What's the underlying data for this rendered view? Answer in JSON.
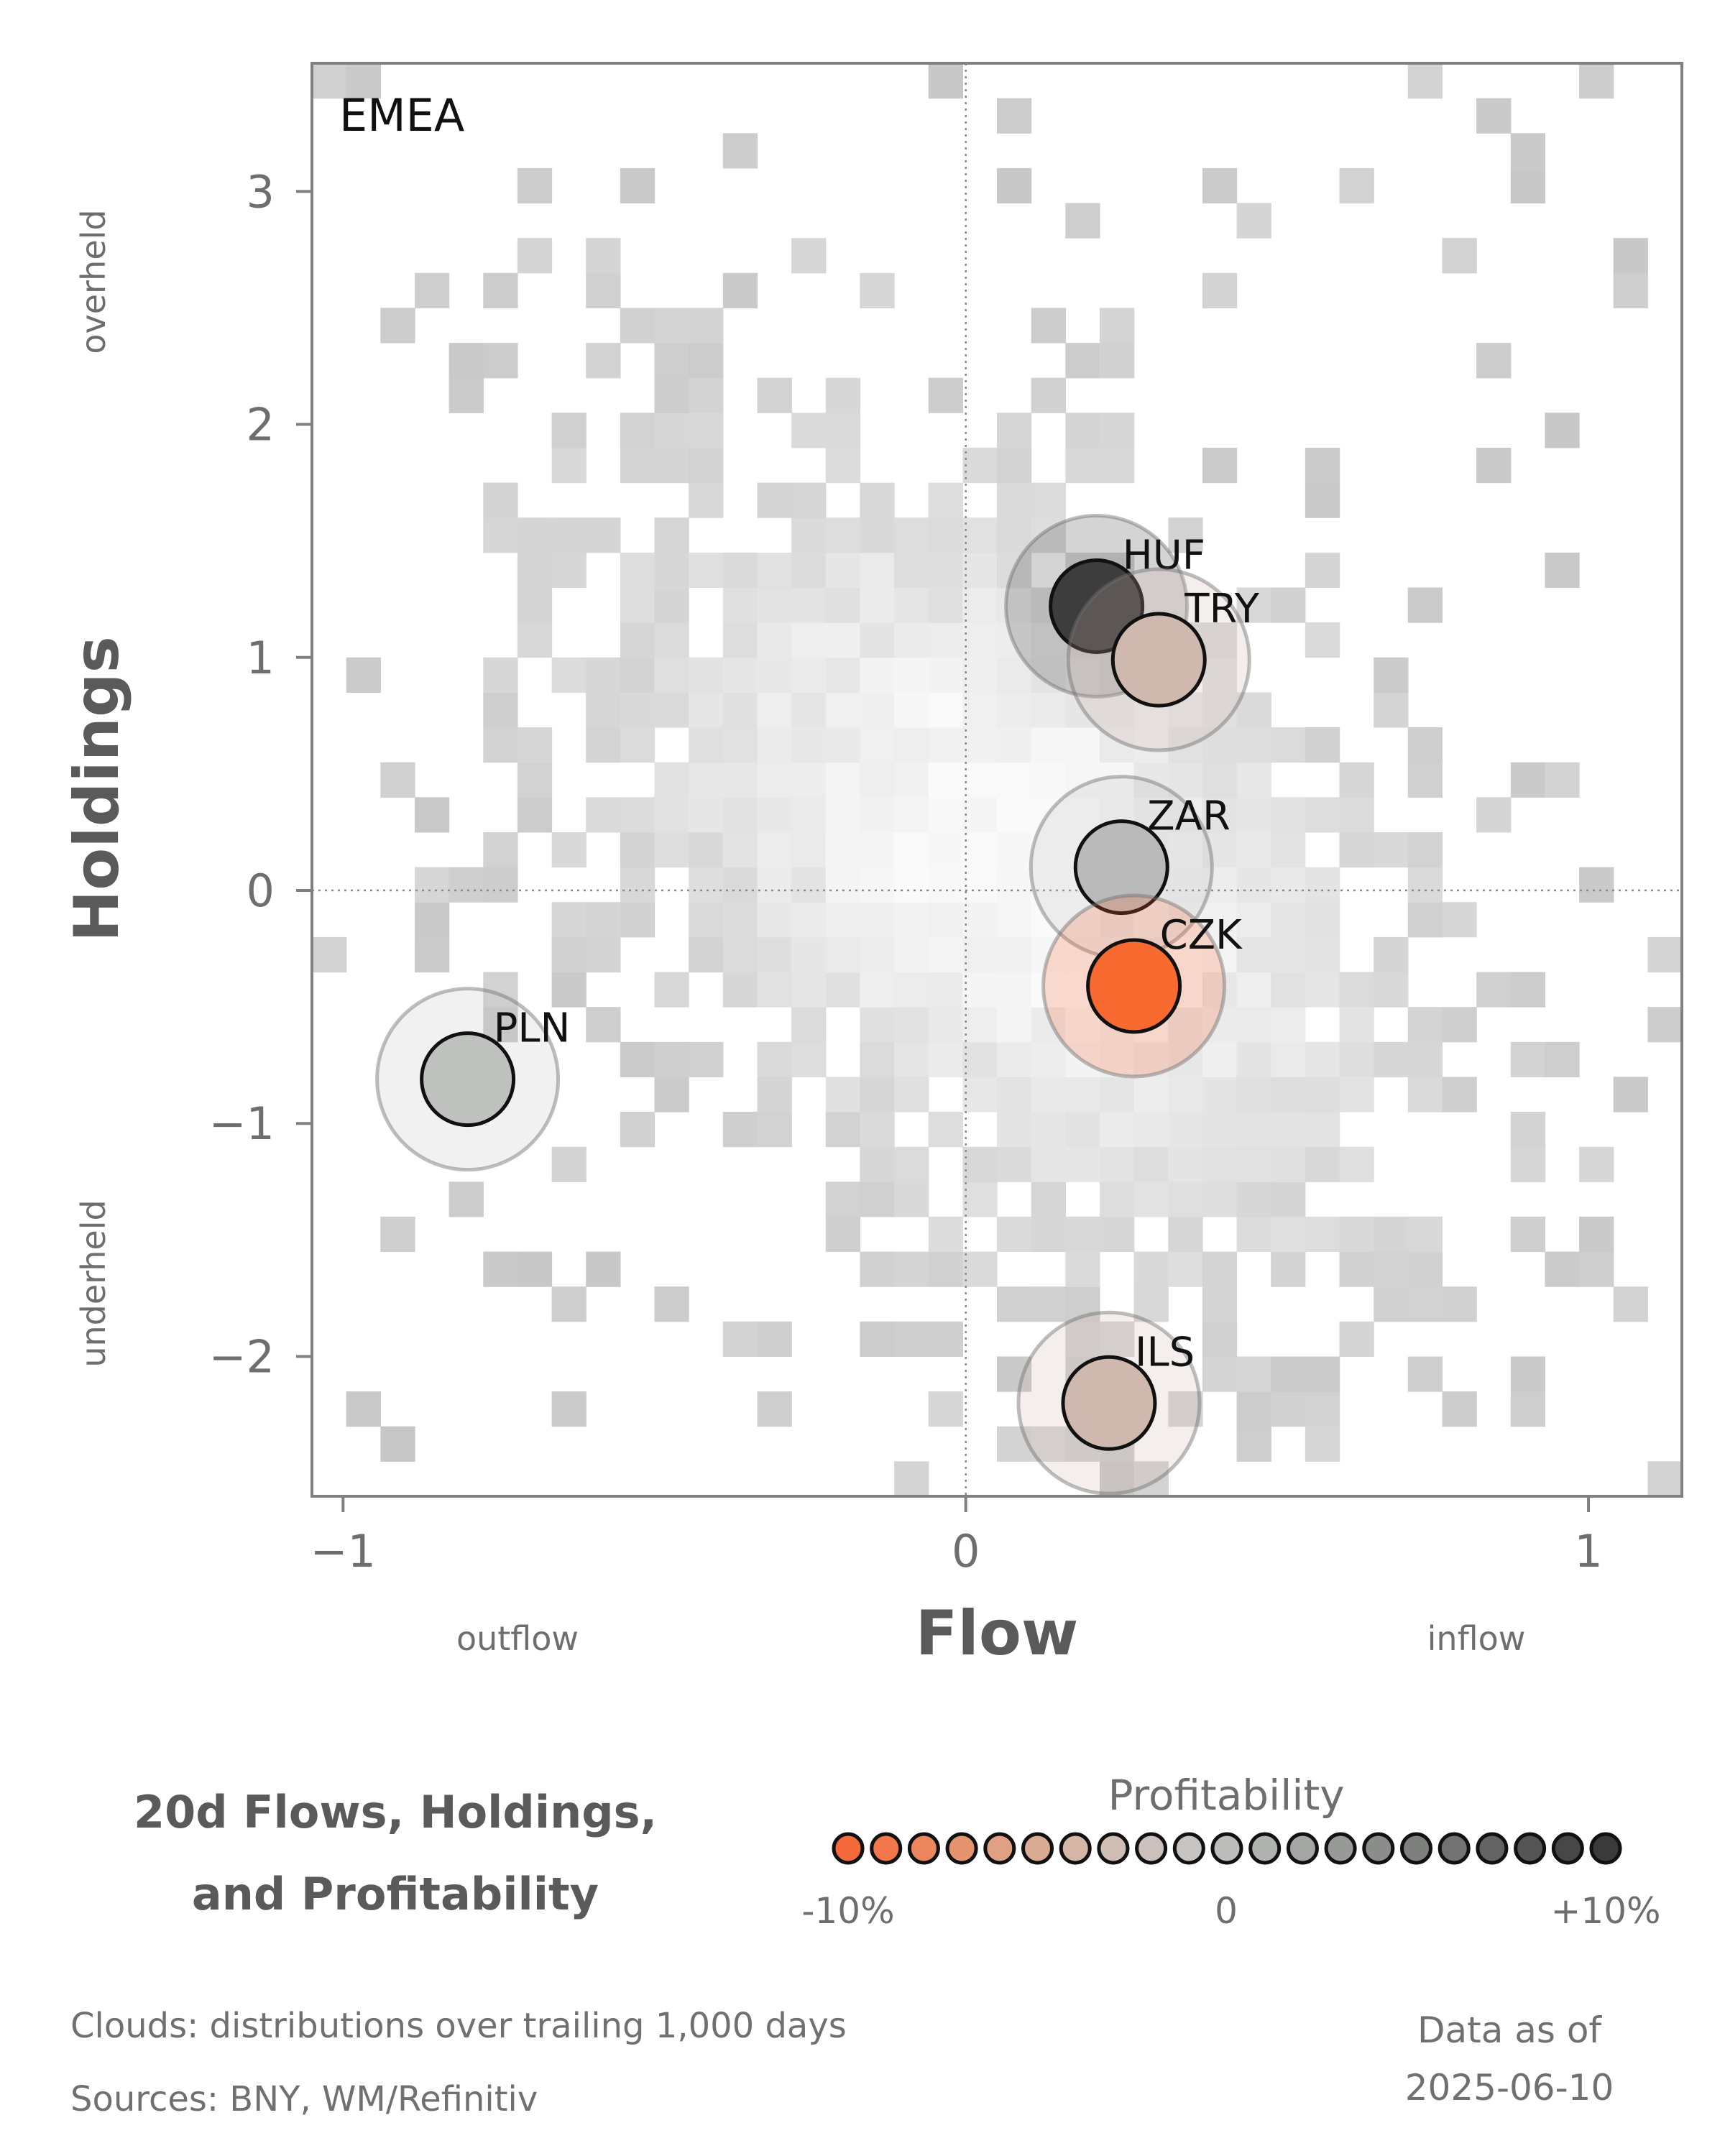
{
  "chart_data": {
    "type": "scatter",
    "panel_label": "EMEA",
    "xlabel": "Flow",
    "ylabel": "Holdings",
    "xlim": [
      -1.05,
      1.15
    ],
    "ylim": [
      -2.6,
      3.55
    ],
    "x_ticks": [
      {
        "value": -1,
        "label": "−1"
      },
      {
        "value": 0,
        "label": "0"
      },
      {
        "value": 1,
        "label": "1"
      }
    ],
    "y_ticks": [
      {
        "value": 3,
        "label": "3"
      },
      {
        "value": 2,
        "label": "2"
      },
      {
        "value": 1,
        "label": "1"
      },
      {
        "value": 0,
        "label": "0"
      },
      {
        "value": -1,
        "label": "−1"
      },
      {
        "value": -2,
        "label": "−2"
      }
    ],
    "x_side_labels": {
      "negative": "outflow",
      "positive": "inflow"
    },
    "y_side_labels": {
      "positive": "overheld",
      "negative": "underheld"
    },
    "reference_lines": {
      "x": 0,
      "y": 0
    },
    "background": "grey 2D histogram clouds (distributions over trailing 1,000 days)",
    "points": [
      {
        "label": "HUF",
        "x": 0.21,
        "y": 1.22,
        "profitability": 10,
        "color": "#3d3d3d"
      },
      {
        "label": "TRY",
        "x": 0.31,
        "y": 0.99,
        "profitability": -3,
        "color": "#cfb8ae"
      },
      {
        "label": "ZAR",
        "x": 0.25,
        "y": 0.1,
        "profitability": 2,
        "color": "#b9bab9"
      },
      {
        "label": "CZK",
        "x": 0.27,
        "y": -0.41,
        "profitability": -10,
        "color": "#f96a30"
      },
      {
        "label": "PLN",
        "x": -0.8,
        "y": -0.81,
        "profitability": 2,
        "color": "#bfc1bf"
      },
      {
        "label": "ILS",
        "x": 0.23,
        "y": -2.2,
        "profitability": -3,
        "color": "#cfb8ae"
      }
    ],
    "legend": {
      "title": "Profitability",
      "range": [
        -10,
        10
      ],
      "tick_labels": [
        "-10%",
        "0",
        "+10%"
      ],
      "colors": [
        "#f6693a",
        "#f2774a",
        "#ec865e",
        "#e69370",
        "#e0a083",
        "#d9ab95",
        "#d4b5a6",
        "#cfbcb3",
        "#cbc0bb",
        "#c7c4c1",
        "#bcbdbb",
        "#b0b2b0",
        "#a4a6a4",
        "#989a98",
        "#8b8d8b",
        "#7e807e",
        "#717271",
        "#626362",
        "#545554",
        "#464746",
        "#393a39"
      ]
    }
  },
  "footer": {
    "title_line1": "20d Flows, Holdings,",
    "title_line2": "and Profitability",
    "clouds_note": "Clouds:  distributions over trailing 1,000 days",
    "sources_note": "Sources:  BNY, WM/Refinitiv",
    "date_line1": "Data as of",
    "date_line2": "2025-06-10"
  }
}
